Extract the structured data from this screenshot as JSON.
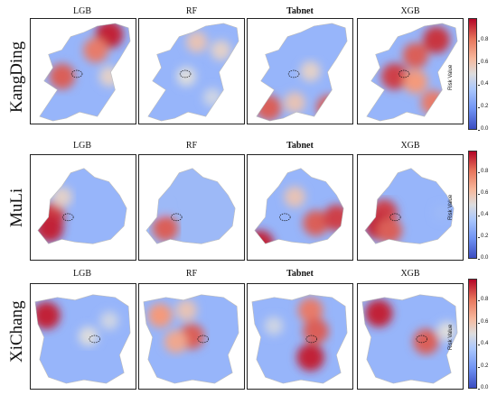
{
  "models": [
    {
      "label": "LGB",
      "bold": false
    },
    {
      "label": "RF",
      "bold": false
    },
    {
      "label": "Tabnet",
      "bold": true
    },
    {
      "label": "XGB",
      "bold": false
    }
  ],
  "regions": [
    {
      "label": "KangDing"
    },
    {
      "label": "MuLi"
    },
    {
      "label": "XiChang"
    }
  ],
  "colorbar": {
    "label": "Risk Value",
    "ticks": [
      "0.0",
      "0.2",
      "0.4",
      "0.6",
      "0.8"
    ],
    "colormap": "coolwarm",
    "low_color": "#3b4cc0",
    "mid_color": "#dddddd",
    "high_color": "#b40426"
  },
  "chart_data": {
    "type": "heatmap",
    "value_range": [
      0,
      1
    ],
    "rows": [
      "KangDing",
      "MuLi",
      "XiChang"
    ],
    "columns": [
      "LGB",
      "RF",
      "Tabnet",
      "XGB"
    ],
    "hotspots": [
      [
        [
          {
            "x": 0.75,
            "y": 0.15,
            "v": 0.95
          },
          {
            "x": 0.62,
            "y": 0.3,
            "v": 0.8
          },
          {
            "x": 0.3,
            "y": 0.55,
            "v": 0.85
          },
          {
            "x": 0.75,
            "y": 0.55,
            "v": 0.55
          }
        ],
        [
          {
            "x": 0.55,
            "y": 0.22,
            "v": 0.6
          },
          {
            "x": 0.78,
            "y": 0.3,
            "v": 0.55
          },
          {
            "x": 0.45,
            "y": 0.55,
            "v": 0.5
          },
          {
            "x": 0.7,
            "y": 0.75,
            "v": 0.45
          }
        ],
        [
          {
            "x": 0.2,
            "y": 0.85,
            "v": 0.85
          },
          {
            "x": 0.78,
            "y": 0.85,
            "v": 0.85
          },
          {
            "x": 0.6,
            "y": 0.5,
            "v": 0.55
          },
          {
            "x": 0.45,
            "y": 0.8,
            "v": 0.6
          }
        ],
        [
          {
            "x": 0.75,
            "y": 0.2,
            "v": 0.92
          },
          {
            "x": 0.55,
            "y": 0.35,
            "v": 0.85
          },
          {
            "x": 0.35,
            "y": 0.55,
            "v": 0.9
          },
          {
            "x": 0.55,
            "y": 0.6,
            "v": 0.75
          },
          {
            "x": 0.72,
            "y": 0.8,
            "v": 0.8
          }
        ]
      ],
      [
        [
          {
            "x": 0.2,
            "y": 0.58,
            "v": 0.9
          },
          {
            "x": 0.18,
            "y": 0.7,
            "v": 0.95
          },
          {
            "x": 0.3,
            "y": 0.4,
            "v": 0.55
          }
        ],
        [
          {
            "x": 0.25,
            "y": 0.7,
            "v": 0.85
          },
          {
            "x": 0.2,
            "y": 0.5,
            "v": 0.3
          }
        ],
        [
          {
            "x": 0.65,
            "y": 0.65,
            "v": 0.85
          },
          {
            "x": 0.85,
            "y": 0.6,
            "v": 0.9
          },
          {
            "x": 0.12,
            "y": 0.85,
            "v": 0.95
          },
          {
            "x": 0.45,
            "y": 0.4,
            "v": 0.6
          }
        ],
        [
          {
            "x": 0.25,
            "y": 0.55,
            "v": 0.9
          },
          {
            "x": 0.2,
            "y": 0.68,
            "v": 0.95
          },
          {
            "x": 0.3,
            "y": 0.72,
            "v": 0.85
          },
          {
            "x": 0.8,
            "y": 0.55,
            "v": 0.3
          }
        ]
      ],
      [
        [
          {
            "x": 0.15,
            "y": 0.3,
            "v": 0.95
          },
          {
            "x": 0.55,
            "y": 0.5,
            "v": 0.5
          },
          {
            "x": 0.75,
            "y": 0.35,
            "v": 0.45
          }
        ],
        [
          {
            "x": 0.2,
            "y": 0.3,
            "v": 0.75
          },
          {
            "x": 0.5,
            "y": 0.5,
            "v": 0.85
          },
          {
            "x": 0.35,
            "y": 0.55,
            "v": 0.7
          },
          {
            "x": 0.45,
            "y": 0.25,
            "v": 0.6
          }
        ],
        [
          {
            "x": 0.6,
            "y": 0.25,
            "v": 0.8
          },
          {
            "x": 0.65,
            "y": 0.45,
            "v": 0.85
          },
          {
            "x": 0.6,
            "y": 0.7,
            "v": 0.95
          },
          {
            "x": 0.25,
            "y": 0.4,
            "v": 0.45
          }
        ],
        [
          {
            "x": 0.2,
            "y": 0.28,
            "v": 0.95
          },
          {
            "x": 0.65,
            "y": 0.55,
            "v": 0.85
          },
          {
            "x": 0.85,
            "y": 0.45,
            "v": 0.5
          }
        ]
      ]
    ]
  }
}
